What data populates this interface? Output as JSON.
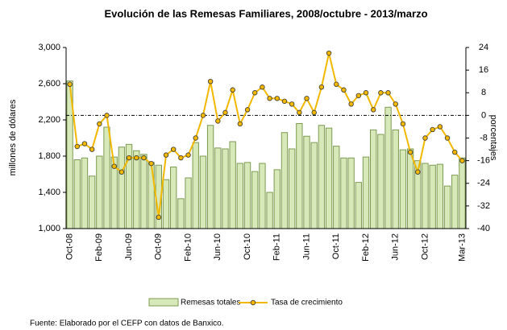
{
  "chart_data": {
    "type": "bar_line",
    "title": "Evolución de las Remesas Familiares, 2008/octubre - 2013/marzo",
    "y_label": "millones de dólares",
    "y2_label": "porcentajes",
    "source": "Fuente: Elaborado por el CEFP con datos de Banxico.",
    "categories": [
      "Oct-08",
      null,
      null,
      null,
      "Feb-09",
      null,
      null,
      null,
      "Jun-09",
      null,
      null,
      null,
      "Oct-09",
      null,
      null,
      null,
      "Feb-10",
      null,
      null,
      null,
      "Jun-10",
      null,
      null,
      null,
      "Oct-10",
      null,
      null,
      null,
      "Feb-11",
      null,
      null,
      null,
      "Jun-11",
      null,
      null,
      null,
      "Oct-11",
      null,
      null,
      null,
      "Feb-12",
      null,
      null,
      null,
      "Jun-12",
      null,
      null,
      null,
      "Oct-12",
      null,
      null,
      null,
      null,
      "Mar-13"
    ],
    "series": [
      {
        "name": "Remesas totales",
        "color": "#d7e9b9",
        "stroke": "#7d9a52",
        "axis": "y",
        "values": [
          2630,
          1760,
          1780,
          1580,
          1800,
          2120,
          1790,
          1900,
          1930,
          1860,
          1820,
          1730,
          1700,
          1540,
          1680,
          1330,
          1560,
          1950,
          1800,
          2140,
          1890,
          1880,
          1960,
          1720,
          1730,
          1630,
          1720,
          1400,
          1650,
          2060,
          1880,
          2160,
          2020,
          1950,
          2140,
          2110,
          1910,
          1780,
          1780,
          1510,
          1790,
          2090,
          2040,
          2340,
          2090,
          1870,
          1880,
          1750,
          1720,
          1700,
          1710,
          1470,
          1590,
          1780
        ]
      },
      {
        "name": "Tasa de crecimiento",
        "color": "#f2b800",
        "axis": "y2",
        "values": [
          11,
          -11,
          -10,
          -12,
          -3,
          0,
          -18,
          -20,
          -15,
          -15,
          -15,
          -17,
          -36,
          -14,
          -12,
          -15,
          -14,
          -8,
          0,
          12,
          -2,
          1,
          9,
          -3,
          2,
          8,
          10,
          6,
          6,
          5,
          4,
          1,
          6,
          1,
          10,
          22,
          11,
          9,
          4,
          7,
          8,
          2,
          8,
          8,
          4,
          -3,
          -13,
          -20,
          -8,
          -5,
          -4,
          -8,
          -13,
          -16
        ]
      }
    ],
    "ylim": [
      1000,
      3000
    ],
    "yticks": [
      {
        "value": 1000,
        "label": "1,000"
      },
      {
        "value": 1400,
        "label": "1,400"
      },
      {
        "value": 1800,
        "label": "1,800"
      },
      {
        "value": 2200,
        "label": "2,200"
      },
      {
        "value": 2600,
        "label": "2,600"
      },
      {
        "value": 3000,
        "label": "3,000"
      }
    ],
    "y2lim": [
      -40,
      24
    ],
    "y2ticks": [
      -40,
      -32,
      -24,
      -16,
      -8,
      0,
      8,
      16,
      24
    ],
    "y2_reference_line": 0
  }
}
